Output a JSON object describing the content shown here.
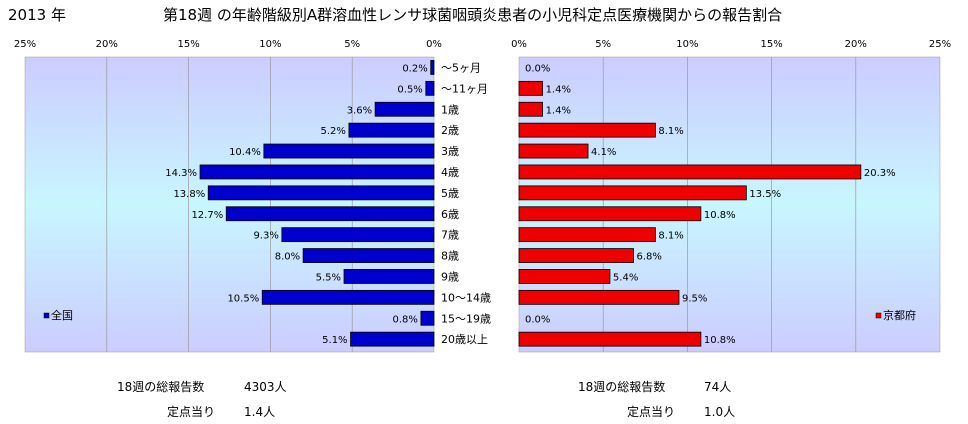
{
  "header": {
    "year": "2013 年",
    "title": "第18週 の年齢階級別A群溶血性レンサ球菌咽頭炎患者の小児科定点医療機関からの報告割合"
  },
  "chart_data": [
    {
      "type": "bar",
      "orientation": "horizontal",
      "direction": "right-to-left",
      "legend": "全国",
      "legend_position": "bottom-left",
      "color": "#0000cc",
      "xlim": [
        0,
        25
      ],
      "xticks": [
        "25%",
        "20%",
        "15%",
        "10%",
        "5%",
        "0%"
      ],
      "grid": true,
      "categories": [
        "～5ヶ月",
        "～11ヶ月",
        "1歳",
        "2歳",
        "3歳",
        "4歳",
        "5歳",
        "6歳",
        "7歳",
        "8歳",
        "9歳",
        "10～14歳",
        "15～19歳",
        "20歳以上"
      ],
      "values": [
        0.2,
        0.5,
        3.6,
        5.2,
        10.4,
        14.3,
        13.8,
        12.7,
        9.3,
        8.0,
        5.5,
        10.5,
        0.8,
        5.1
      ],
      "labels": [
        "0.2%",
        "0.5%",
        "3.6%",
        "5.2%",
        "10.4%",
        "14.3%",
        "13.8%",
        "12.7%",
        "9.3%",
        "8.0%",
        "5.5%",
        "10.5%",
        "0.8%",
        "5.1%"
      ]
    },
    {
      "type": "bar",
      "orientation": "horizontal",
      "direction": "left-to-right",
      "legend": "京都府",
      "legend_position": "bottom-right",
      "color": "#ee0000",
      "xlim": [
        0,
        25
      ],
      "xticks": [
        "0%",
        "5%",
        "10%",
        "15%",
        "20%",
        "25%"
      ],
      "grid": true,
      "categories": [
        "～5ヶ月",
        "～11ヶ月",
        "1歳",
        "2歳",
        "3歳",
        "4歳",
        "5歳",
        "6歳",
        "7歳",
        "8歳",
        "9歳",
        "10～14歳",
        "15～19歳",
        "20歳以上"
      ],
      "values": [
        0.0,
        1.4,
        1.4,
        8.1,
        4.1,
        20.3,
        13.5,
        10.8,
        8.1,
        6.8,
        5.4,
        9.5,
        0.0,
        10.8
      ],
      "labels": [
        "0.0%",
        "1.4%",
        "1.4%",
        "8.1%",
        "4.1%",
        "20.3%",
        "13.5%",
        "10.8%",
        "8.1%",
        "6.8%",
        "5.4%",
        "9.5%",
        "0.0%",
        "10.8%"
      ]
    }
  ],
  "stats": {
    "national": {
      "total_label": "18週の総報告数",
      "total_value": "4303人",
      "per_label": "定点当り",
      "per_value": "1.4人"
    },
    "kyoto": {
      "total_label": "18週の総報告数",
      "total_value": "74人",
      "per_label": "定点当り",
      "per_value": "1.0人"
    }
  }
}
